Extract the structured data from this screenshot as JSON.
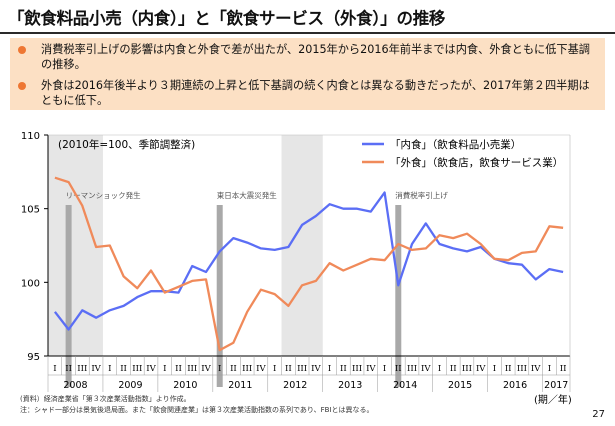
{
  "title": "「飲食料品小売（内食）」と「飲食サービス（外食）」の推移",
  "summary": [
    "消費税率引上げの影響は内食と外食で差が出たが、2015年から2016年前半までは内食、外食ともに低下基調の推移。",
    "外食は2016年後半より３期連続の上昇と低下基調の続く内食とは異なる動きだったが、2017年第２四半期はともに低下。"
  ],
  "colors": {
    "naishoku": "#5b6ef5",
    "gaishoku": "#f08a5a",
    "shade": "#e6e6e6",
    "event_line": "#a9a9a9",
    "bullet": "#ee7733",
    "summary_bg": "#fce0c4"
  },
  "chart_data": {
    "type": "line",
    "unit_note": "(2010年=100、季節調整済)",
    "ylim": [
      95,
      110
    ],
    "yticks": [
      95,
      100,
      105,
      110
    ],
    "quarter_labels": [
      "I",
      "II",
      "III",
      "IV",
      "I",
      "II",
      "III",
      "IV",
      "I",
      "II",
      "III",
      "IV",
      "I",
      "II",
      "III",
      "IV",
      "I",
      "II",
      "III",
      "IV",
      "I",
      "II",
      "III",
      "IV",
      "I",
      "II",
      "III",
      "IV",
      "I",
      "II",
      "III",
      "IV",
      "I",
      "II",
      "III",
      "IV",
      "I",
      "II"
    ],
    "year_labels": [
      {
        "label": "2008",
        "start": 0,
        "end": 3
      },
      {
        "label": "2009",
        "start": 4,
        "end": 7
      },
      {
        "label": "2010",
        "start": 8,
        "end": 11
      },
      {
        "label": "2011",
        "start": 12,
        "end": 15
      },
      {
        "label": "2012",
        "start": 16,
        "end": 19
      },
      {
        "label": "2013",
        "start": 20,
        "end": 23
      },
      {
        "label": "2014",
        "start": 24,
        "end": 27
      },
      {
        "label": "2015",
        "start": 28,
        "end": 31
      },
      {
        "label": "2016",
        "start": 32,
        "end": 35
      },
      {
        "label": "2017",
        "start": 36,
        "end": 37
      }
    ],
    "xlabel": "(期／年)",
    "shaded_ranges": [
      [
        0,
        4
      ],
      [
        17,
        20
      ]
    ],
    "events": [
      {
        "label": "リーマンショック発生",
        "index": 1
      },
      {
        "label": "東日本大震災発生",
        "index": 12
      },
      {
        "label": "消費税率引上げ",
        "index": 25
      }
    ],
    "series": [
      {
        "name": "「内食」（飲食料品小売業）",
        "color": "#5b6ef5",
        "values": [
          98.0,
          96.8,
          98.1,
          97.6,
          98.1,
          98.4,
          99.0,
          99.4,
          99.4,
          99.3,
          101.1,
          100.7,
          102.1,
          103.0,
          102.7,
          102.3,
          102.2,
          102.4,
          103.9,
          104.5,
          105.3,
          105.0,
          105.0,
          104.8,
          106.1,
          99.8,
          102.6,
          104.0,
          102.6,
          102.3,
          102.1,
          102.4,
          101.6,
          101.3,
          101.2,
          100.2,
          100.9,
          100.7
        ]
      },
      {
        "name": "「外食」（飲食店，飲食サービス業）",
        "color": "#f08a5a",
        "values": [
          107.1,
          106.8,
          105.2,
          102.4,
          102.5,
          100.4,
          99.6,
          100.8,
          99.3,
          99.7,
          100.1,
          100.2,
          95.4,
          95.9,
          98.0,
          99.5,
          99.2,
          98.4,
          99.8,
          100.1,
          101.3,
          100.8,
          101.2,
          101.6,
          101.5,
          102.6,
          102.2,
          102.3,
          103.2,
          103.0,
          103.3,
          102.6,
          101.6,
          101.5,
          102.0,
          102.1,
          103.8,
          103.7
        ]
      }
    ]
  },
  "footnotes": [
    "(資料）経済産業省「第３次産業活動指数」より作成。",
    "注：シャド一部分は景気後退局面。また「飲食関連産業」は第３次産業活動指数の系列であり、FBIとは異なる。"
  ],
  "page_number": "27"
}
